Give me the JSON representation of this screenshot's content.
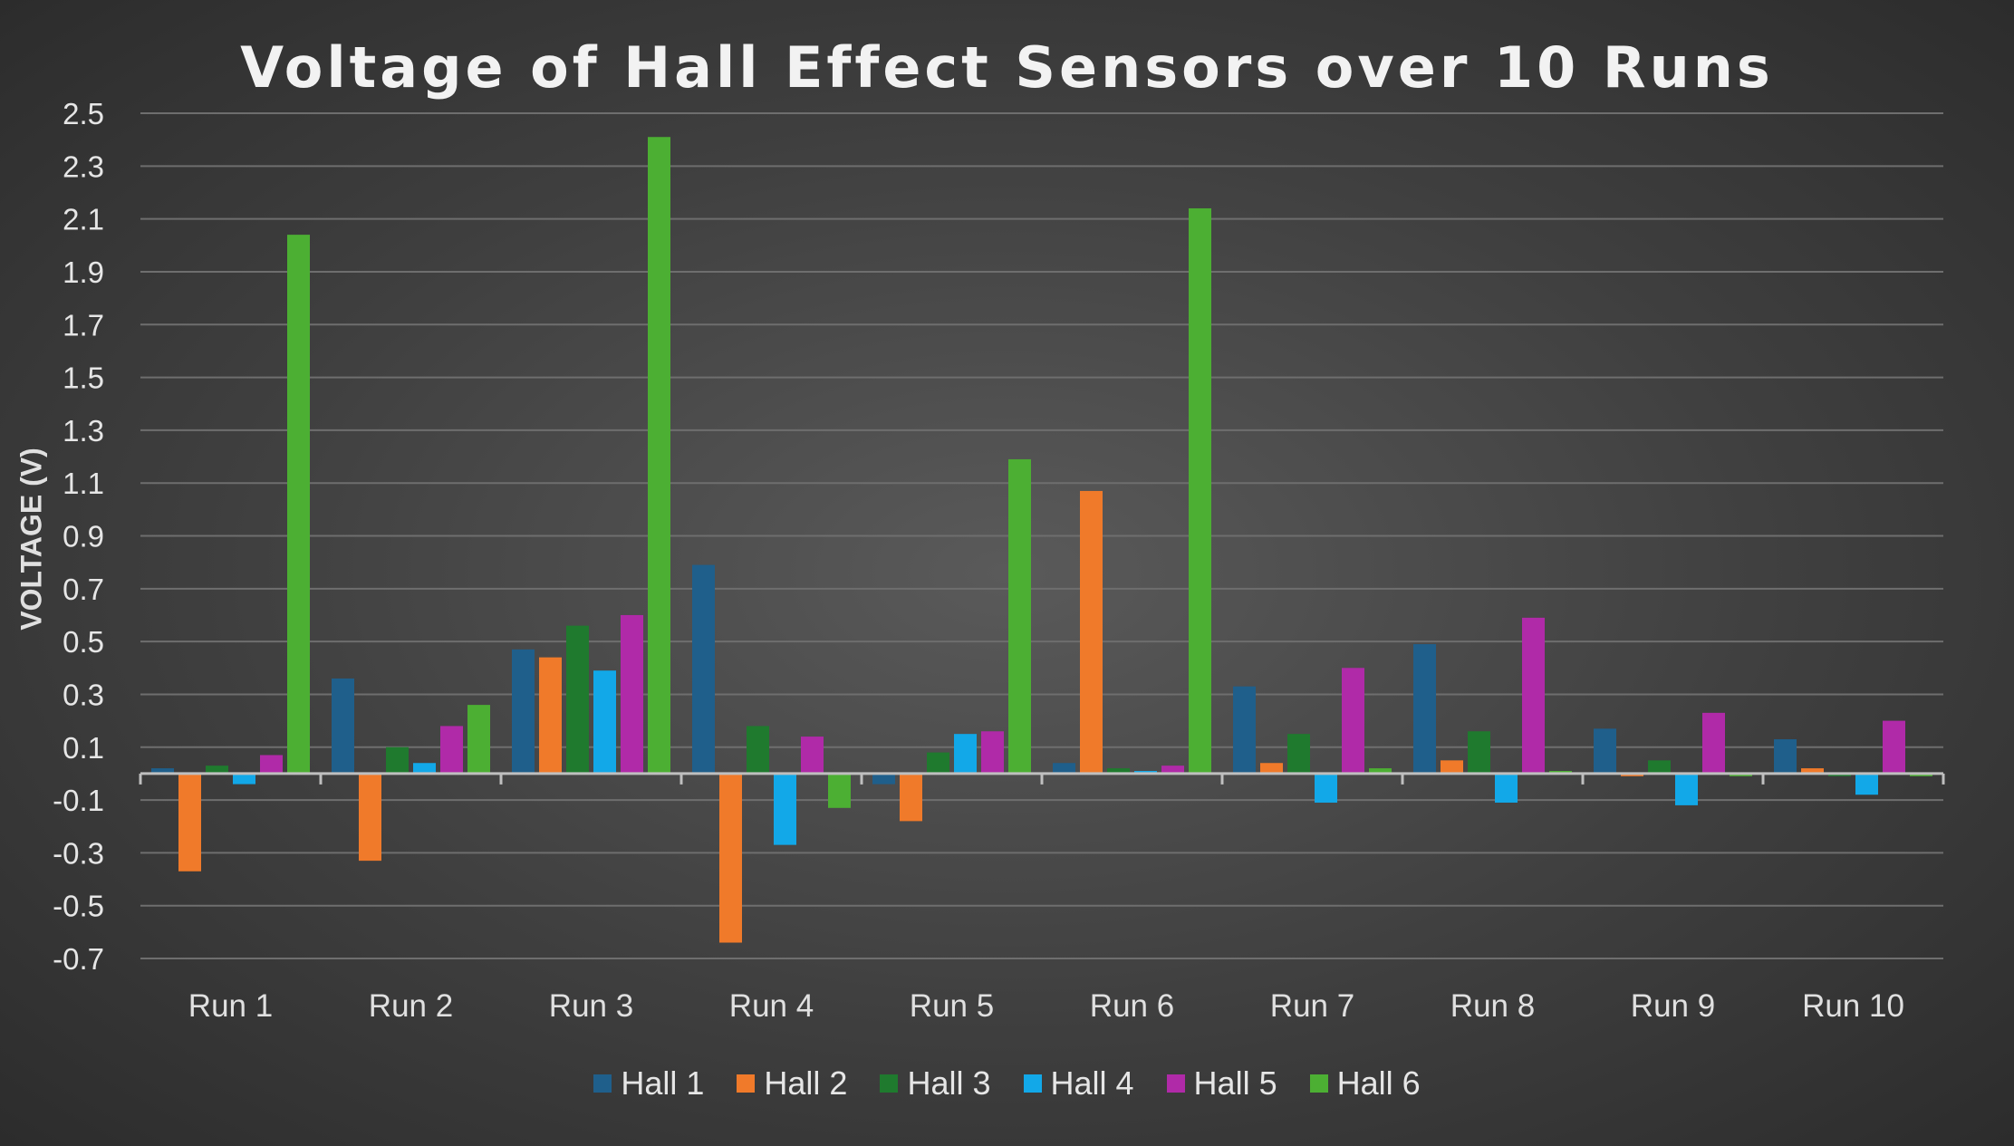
{
  "chart_data": {
    "type": "bar",
    "title": "Voltage of Hall Effect Sensors over 10 Runs",
    "ylabel": "VOLTAGE (V)",
    "xlabel": "",
    "ylim": [
      -0.7,
      2.5
    ],
    "yticks": [
      "2.5",
      "2.3",
      "2.1",
      "1.9",
      "1.7",
      "1.5",
      "1.3",
      "1.1",
      "0.9",
      "0.7",
      "0.5",
      "0.3",
      "0.1",
      "-0.1",
      "-0.3",
      "-0.5",
      "-0.7"
    ],
    "grid": true,
    "legend_position": "bottom",
    "categories": [
      "Run 1",
      "Run 2",
      "Run 3",
      "Run 4",
      "Run 5",
      "Run 6",
      "Run 7",
      "Run 8",
      "Run 9",
      "Run 10"
    ],
    "series": [
      {
        "name": "Hall 1",
        "color": "#1f5f8b",
        "values": [
          0.02,
          0.36,
          0.47,
          0.79,
          -0.04,
          0.04,
          0.33,
          0.49,
          0.17,
          0.13
        ]
      },
      {
        "name": "Hall 2",
        "color": "#f07a2a",
        "values": [
          -0.37,
          -0.33,
          0.44,
          -0.64,
          -0.18,
          1.07,
          0.04,
          0.05,
          -0.01,
          0.02
        ]
      },
      {
        "name": "Hall 3",
        "color": "#1f7a2e",
        "values": [
          0.03,
          0.1,
          0.56,
          0.18,
          0.08,
          0.02,
          0.15,
          0.16,
          0.05,
          -0.01
        ]
      },
      {
        "name": "Hall 4",
        "color": "#12a8e8",
        "values": [
          -0.04,
          0.04,
          0.39,
          -0.27,
          0.15,
          0.01,
          -0.11,
          -0.11,
          -0.12,
          -0.08
        ]
      },
      {
        "name": "Hall 5",
        "color": "#b02aa8",
        "values": [
          0.07,
          0.18,
          0.6,
          0.14,
          0.16,
          0.03,
          0.4,
          0.59,
          0.23,
          0.2
        ]
      },
      {
        "name": "Hall 6",
        "color": "#4caf33",
        "values": [
          2.04,
          0.26,
          2.41,
          -0.13,
          1.19,
          2.14,
          0.02,
          0.01,
          -0.01,
          -0.01
        ]
      }
    ]
  }
}
